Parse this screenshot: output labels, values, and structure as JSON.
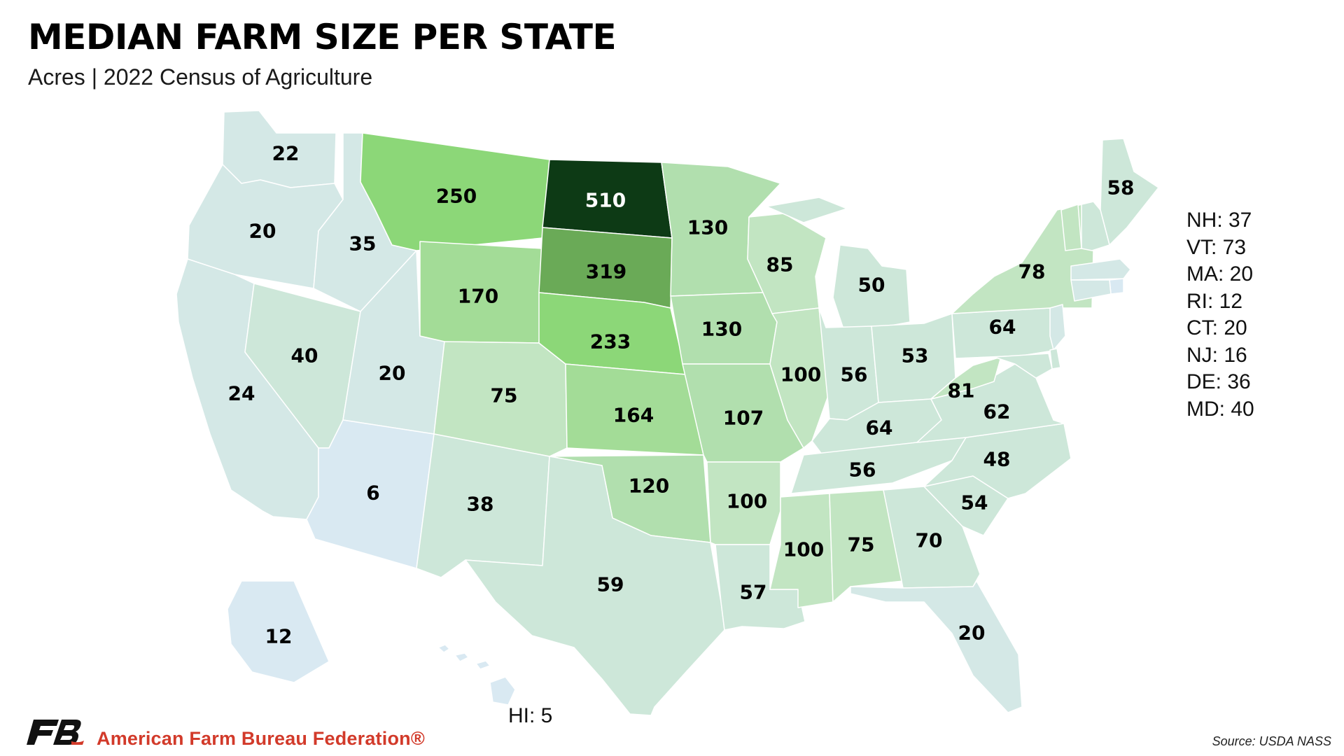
{
  "title": "MEDIAN FARM SIZE PER STATE",
  "subtitle": "Acres | 2022 Census of Agriculture",
  "map": {
    "unit": "acres",
    "colors": {
      "band_0_14": "#d9e9f2",
      "band_15_35": "#d4e8e6",
      "band_36_70": "#cde7d9",
      "band_71_100": "#c2e5c2",
      "band_101_150": "#b1dfae",
      "band_151_200": "#a3dc97",
      "band_201_260": "#8cd778",
      "band_261_400": "#6aaa57",
      "band_400_plus": "#0d3a15",
      "label_dark": "#000000",
      "label_light": "#ffffff"
    },
    "states": [
      {
        "name": "WA",
        "value": "22"
      },
      {
        "name": "OR",
        "value": "20"
      },
      {
        "name": "CA",
        "value": "24"
      },
      {
        "name": "ID",
        "value": "35"
      },
      {
        "name": "NV",
        "value": "40"
      },
      {
        "name": "UT",
        "value": "20"
      },
      {
        "name": "AZ",
        "value": "6"
      },
      {
        "name": "MT",
        "value": "250"
      },
      {
        "name": "WY",
        "value": "170"
      },
      {
        "name": "CO",
        "value": "75"
      },
      {
        "name": "NM",
        "value": "38"
      },
      {
        "name": "ND",
        "value": "510"
      },
      {
        "name": "SD",
        "value": "319"
      },
      {
        "name": "NE",
        "value": "233"
      },
      {
        "name": "KS",
        "value": "164"
      },
      {
        "name": "OK",
        "value": "120"
      },
      {
        "name": "TX",
        "value": "59"
      },
      {
        "name": "MN",
        "value": "130"
      },
      {
        "name": "IA",
        "value": "130"
      },
      {
        "name": "MO",
        "value": "107"
      },
      {
        "name": "AR",
        "value": "100"
      },
      {
        "name": "LA",
        "value": "57"
      },
      {
        "name": "WI",
        "value": "85"
      },
      {
        "name": "IL",
        "value": "100"
      },
      {
        "name": "MI",
        "value": "50"
      },
      {
        "name": "IN",
        "value": "56"
      },
      {
        "name": "OH",
        "value": "53"
      },
      {
        "name": "KY",
        "value": "64"
      },
      {
        "name": "TN",
        "value": "56"
      },
      {
        "name": "MS",
        "value": "100"
      },
      {
        "name": "AL",
        "value": "75"
      },
      {
        "name": "GA",
        "value": "70"
      },
      {
        "name": "FL",
        "value": "20"
      },
      {
        "name": "SC",
        "value": "54"
      },
      {
        "name": "NC",
        "value": "48"
      },
      {
        "name": "VA",
        "value": "62"
      },
      {
        "name": "WV",
        "value": "81"
      },
      {
        "name": "PA",
        "value": "64"
      },
      {
        "name": "NY",
        "value": "78"
      },
      {
        "name": "ME",
        "value": "58"
      },
      {
        "name": "AK",
        "value": "12"
      }
    ],
    "small_states": [
      {
        "name": "NH",
        "value": "37"
      },
      {
        "name": "VT",
        "value": "73"
      },
      {
        "name": "MA",
        "value": "20"
      },
      {
        "name": "RI",
        "value": "12"
      },
      {
        "name": "CT",
        "value": "20"
      },
      {
        "name": "NJ",
        "value": "16"
      },
      {
        "name": "DE",
        "value": "36"
      },
      {
        "name": "MD",
        "value": "40"
      }
    ],
    "hawaii_note": "HI: 5"
  },
  "footer": {
    "brand_name": "American Farm Bureau Federation®",
    "brand_logo_icon": "afbf-logo-icon",
    "brand_color": "#d23a2a",
    "source": "Source: USDA NASS"
  }
}
